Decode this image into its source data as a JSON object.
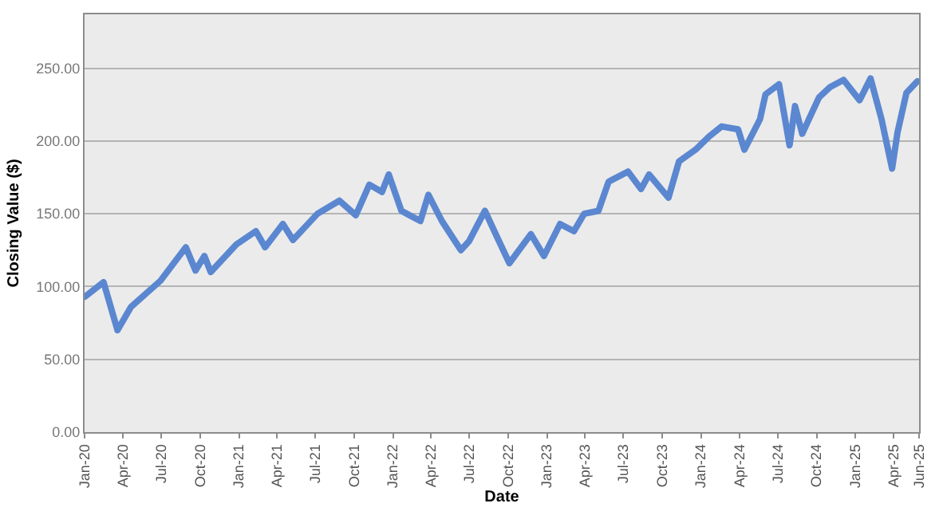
{
  "chart_data": {
    "type": "line",
    "xlabel": "Date",
    "ylabel": "Closing Value ($)",
    "xlim": [
      "2020-01-01",
      "2025-06-01"
    ],
    "xticks": [
      {
        "value": "2020-01-01",
        "label": "Jan-20"
      },
      {
        "value": "2020-04-01",
        "label": "Apr-20"
      },
      {
        "value": "2020-07-01",
        "label": "Jul-20"
      },
      {
        "value": "2020-10-01",
        "label": "Oct-20"
      },
      {
        "value": "2021-01-01",
        "label": "Jan-21"
      },
      {
        "value": "2021-04-01",
        "label": "Apr-21"
      },
      {
        "value": "2021-07-01",
        "label": "Jul-21"
      },
      {
        "value": "2021-10-01",
        "label": "Oct-21"
      },
      {
        "value": "2022-01-01",
        "label": "Jan-22"
      },
      {
        "value": "2022-04-01",
        "label": "Apr-22"
      },
      {
        "value": "2022-07-01",
        "label": "Jul-22"
      },
      {
        "value": "2022-10-01",
        "label": "Oct-22"
      },
      {
        "value": "2023-01-01",
        "label": "Jan-23"
      },
      {
        "value": "2023-04-01",
        "label": "Apr-23"
      },
      {
        "value": "2023-07-01",
        "label": "Jul-23"
      },
      {
        "value": "2023-10-01",
        "label": "Oct-23"
      },
      {
        "value": "2024-01-01",
        "label": "Jan-24"
      },
      {
        "value": "2024-04-01",
        "label": "Apr-24"
      },
      {
        "value": "2024-07-01",
        "label": "Jul-24"
      },
      {
        "value": "2024-10-01",
        "label": "Oct-24"
      },
      {
        "value": "2025-01-01",
        "label": "Jan-25"
      },
      {
        "value": "2025-04-01",
        "label": "Apr-25"
      },
      {
        "value": "2025-06-01",
        "label": "Jun-25"
      }
    ],
    "ylim": [
      0,
      287
    ],
    "yticks": [
      {
        "value": 0,
        "label": "0.00"
      },
      {
        "value": 50,
        "label": "50.00"
      },
      {
        "value": 100,
        "label": "100.00"
      },
      {
        "value": 150,
        "label": "150.00"
      },
      {
        "value": 200,
        "label": "200.00"
      },
      {
        "value": 250,
        "label": "250.00"
      }
    ],
    "grid": "y",
    "legend": false,
    "marker": "none",
    "line_style": "solid",
    "x": [
      "2020-01-02",
      "2020-02-15",
      "2020-03-19",
      "2020-04-20",
      "2020-06-29",
      "2020-08-28",
      "2020-09-20",
      "2020-10-11",
      "2020-10-26",
      "2020-12-26",
      "2021-02-10",
      "2021-03-04",
      "2021-04-15",
      "2021-05-09",
      "2021-07-06",
      "2021-08-27",
      "2021-10-05",
      "2021-11-06",
      "2021-12-06",
      "2021-12-22",
      "2022-01-21",
      "2022-03-07",
      "2022-03-26",
      "2022-04-27",
      "2022-06-11",
      "2022-06-30",
      "2022-08-07",
      "2022-09-08",
      "2022-10-04",
      "2022-11-24",
      "2022-12-25",
      "2023-02-01",
      "2023-03-06",
      "2023-03-30",
      "2023-05-03",
      "2023-05-27",
      "2023-07-12",
      "2023-08-12",
      "2023-08-31",
      "2023-10-16",
      "2023-11-10",
      "2023-12-19",
      "2024-01-20",
      "2024-02-19",
      "2024-03-29",
      "2024-04-13",
      "2024-05-20",
      "2024-06-02",
      "2024-07-04",
      "2024-07-29",
      "2024-08-11",
      "2024-08-28",
      "2024-10-07",
      "2024-11-02",
      "2024-12-04",
      "2025-01-11",
      "2025-02-06",
      "2025-03-04",
      "2025-03-29",
      "2025-04-11",
      "2025-05-02",
      "2025-05-28"
    ],
    "series": [
      {
        "color": "#5b87d0",
        "values": [
          93,
          103,
          70,
          86,
          104,
          127,
          111,
          121,
          110,
          129,
          138,
          127,
          143,
          132,
          150,
          159,
          149,
          170,
          165,
          177,
          152,
          145,
          163,
          145,
          125,
          131,
          152,
          132,
          116,
          136,
          121,
          143,
          138,
          150,
          152,
          172,
          179,
          167,
          177,
          161,
          186,
          194,
          203,
          210,
          208,
          194,
          215,
          232,
          239,
          197,
          224,
          205,
          230,
          237,
          242,
          228,
          243,
          215,
          181,
          206,
          233,
          241
        ]
      }
    ]
  }
}
